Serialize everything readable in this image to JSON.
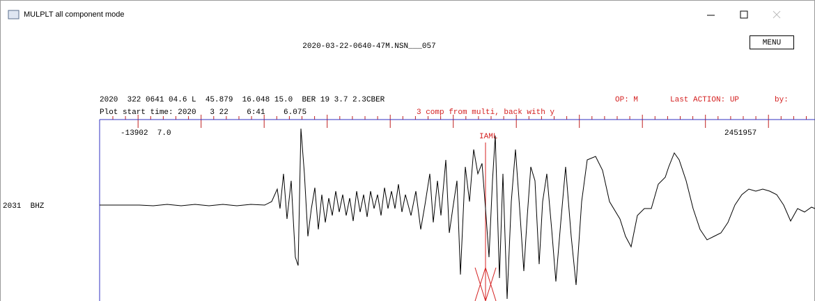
{
  "window": {
    "title": "MULPLT all component mode"
  },
  "header": {
    "filename": "2020-03-22-0640-47M.NSN___057",
    "menu": "MENU"
  },
  "info": {
    "event_line": "2020  322 0641 04.6 L  45.879  16.048 15.0  BER 19 3.7 2.3CBER",
    "operator": "OP: M",
    "last_action": "Last ACTION: UP",
    "by": "by:",
    "plot_start": "Plot start time: 2020   3 22    6:41    6.075",
    "mode_hint": "3 comp from multi, back with y"
  },
  "trace": {
    "amplitude_left": "-13902  7.0",
    "phase": "IAML",
    "max_amplitude": "2451957",
    "station": "2031  BHZ"
  }
}
